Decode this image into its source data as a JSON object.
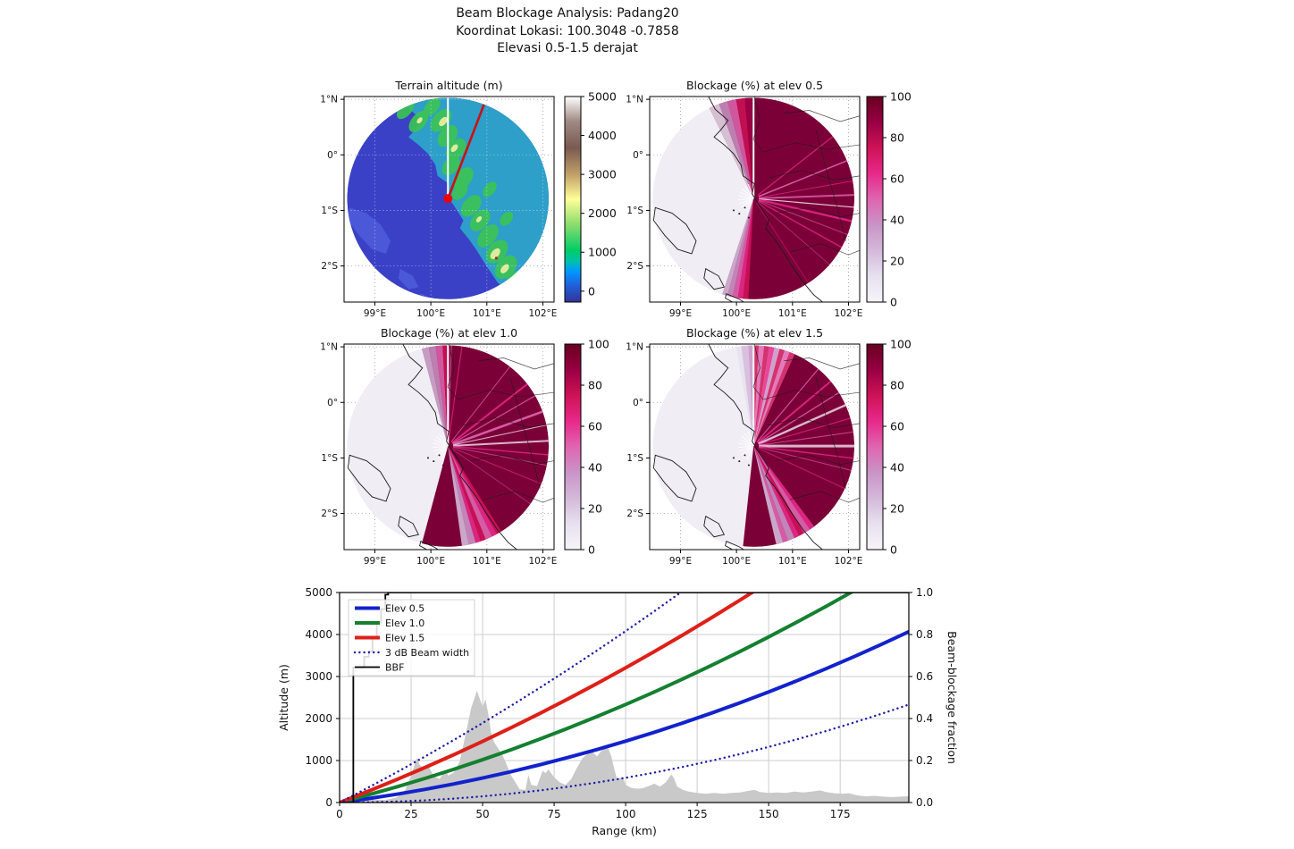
{
  "title": {
    "line1": "Beam Blockage Analysis: Padang20",
    "line2": "Koordinat Lokasi: 100.3048 -0.7858",
    "line3": "Elevasi 0.5-1.5 derajat"
  },
  "maps": {
    "x_tick_labels": [
      "99°E",
      "100°E",
      "101°E",
      "102°E"
    ],
    "y_tick_labels": [
      "1°N",
      "0°",
      "1°S",
      "2°S"
    ],
    "radar": {
      "lon": 100.3048,
      "lat": -0.7858
    },
    "panels": [
      {
        "id": "terrain",
        "title": "Terrain altitude (m)",
        "colorbar_ticks": [
          "0",
          "1000",
          "2000",
          "3000",
          "4000",
          "5000"
        ],
        "colormap": "terrain"
      },
      {
        "id": "blk05",
        "title": "Blockage (%) at elev 0.5",
        "colorbar_ticks": [
          "0",
          "20",
          "40",
          "60",
          "80",
          "100"
        ],
        "colormap": "PuRd"
      },
      {
        "id": "blk10",
        "title": "Blockage (%) at elev 1.0",
        "colorbar_ticks": [
          "0",
          "20",
          "40",
          "60",
          "80",
          "100"
        ],
        "colormap": "PuRd"
      },
      {
        "id": "blk15",
        "title": "Blockage (%) at elev 1.5",
        "colorbar_ticks": [
          "0",
          "20",
          "40",
          "60",
          "80",
          "100"
        ],
        "colormap": "PuRd"
      }
    ]
  },
  "colors": {
    "elev05": "#1222cc",
    "elev10": "#148030",
    "elev15": "#dd2018",
    "beamwidth_dotted": "#1d1da8",
    "bbf": "#000000",
    "terrain_profile_fill": "#c9c9c9",
    "blockage_high": "#67001f",
    "blockage_low": "#f7f4f9",
    "ocean": "#3a41c6",
    "land_low": "#2d9fc9",
    "ridge_green": "#3cc255",
    "radar_marker": "#ee0000"
  },
  "chart_data": [
    {
      "type": "heatmap",
      "title": "Terrain altitude (m)",
      "x_ticks": [
        "99°E",
        "100°E",
        "101°E",
        "102°E"
      ],
      "y_ticks": [
        "1°N",
        "0°",
        "1°S",
        "2°S"
      ],
      "colorbar": {
        "ticks": [
          0,
          1000,
          2000,
          3000,
          4000,
          5000
        ],
        "max": 5000
      },
      "colormap": "terrain",
      "radar": {
        "lon": 100.3048,
        "lat": -0.7858
      },
      "range_ring_deg": 1.8,
      "annotations": [
        "white north azimuth line",
        "red cross-section azimuth line",
        "red radar dot"
      ]
    },
    {
      "type": "heatmap",
      "title": "Blockage (%) at elev 0.5",
      "elevation_deg": 0.5,
      "x_ticks": [
        "99°E",
        "100°E",
        "101°E",
        "102°E"
      ],
      "y_ticks": [
        "1°N",
        "0°",
        "1°S",
        "2°S"
      ],
      "colorbar": {
        "ticks": [
          0,
          20,
          40,
          60,
          80,
          100
        ],
        "max": 100
      },
      "colormap": "PuRd",
      "summary": "near-100% blockage over land sector east of radar (azimuth ~-26° to ~198°), ~0% over sea to the west"
    },
    {
      "type": "heatmap",
      "title": "Blockage (%) at elev 1.0",
      "elevation_deg": 1.0,
      "x_ticks": [
        "99°E",
        "100°E",
        "101°E",
        "102°E"
      ],
      "y_ticks": [
        "1°N",
        "0°",
        "1°S",
        "2°S"
      ],
      "colorbar": {
        "ticks": [
          0,
          20,
          40,
          60,
          80,
          100
        ],
        "max": 100
      },
      "colormap": "PuRd",
      "summary": "high blockage east of radar with more unblocked radial streaks than elev 0.5"
    },
    {
      "type": "heatmap",
      "title": "Blockage (%) at elev 1.5",
      "elevation_deg": 1.5,
      "x_ticks": [
        "99°E",
        "100°E",
        "101°E",
        "102°E"
      ],
      "y_ticks": [
        "1°N",
        "0°",
        "1°S",
        "2°S"
      ],
      "colorbar": {
        "ticks": [
          0,
          20,
          40,
          60,
          80,
          100
        ],
        "max": 100
      },
      "colormap": "PuRd",
      "summary": "blocked sector shrinks; NNE sector partially unblocked with striped partial blockage"
    },
    {
      "type": "line",
      "xlabel": "Range (km)",
      "ylabel_left": "Altitude (m)",
      "ylabel_right": "Beam-blockage fraction",
      "xlim": [
        0,
        199
      ],
      "ylim_left": [
        0,
        5000
      ],
      "ylim_right": [
        0,
        1.0
      ],
      "x_ticks": [
        0,
        25,
        50,
        75,
        100,
        125,
        150,
        175
      ],
      "y_ticks_left": [
        0,
        1000,
        2000,
        3000,
        4000,
        5000
      ],
      "y_ticks_right": [
        "0.0",
        "0.2",
        "0.4",
        "0.6",
        "0.8",
        "1.0"
      ],
      "legend": {
        "position": "upper left",
        "entries": [
          "Elev 0.5",
          "Elev 1.0",
          "Elev 1.5",
          "3 dB Beam width",
          "BBF"
        ]
      },
      "series": [
        {
          "name": "Elev 0.5",
          "axis": "left",
          "style": "solid",
          "color": "#1222cc",
          "width": 4,
          "x": [
            0,
            10,
            20,
            30,
            40,
            50,
            60,
            70,
            80,
            90,
            100,
            110,
            120,
            130,
            140,
            150,
            160,
            170,
            180,
            190,
            199
          ],
          "y": [
            0,
            93,
            198,
            315,
            443,
            584,
            736,
            899,
            1075,
            1262,
            1461,
            1672,
            1895,
            2129,
            2376,
            2633,
            2903,
            3185,
            3478,
            3783,
            4068
          ]
        },
        {
          "name": "Elev 1.0",
          "axis": "left",
          "style": "solid",
          "color": "#148030",
          "width": 4,
          "x": [
            0,
            10,
            20,
            30,
            40,
            50,
            60,
            70,
            80,
            90,
            100,
            110,
            120,
            130,
            140,
            150,
            160,
            170,
            180,
            190,
            199
          ],
          "y": [
            0,
            181,
            373,
            577,
            792,
            1020,
            1259,
            1510,
            1773,
            2048,
            2334,
            2632,
            2942,
            3264,
            3597,
            3943,
            4300,
            4668,
            5049,
            5441,
            5804
          ]
        },
        {
          "name": "Elev 1.5",
          "axis": "left",
          "style": "solid",
          "color": "#dd2018",
          "width": 4,
          "x": [
            0,
            10,
            20,
            30,
            40,
            50,
            60,
            70,
            80,
            90,
            100,
            110,
            120,
            130,
            140,
            150,
            160,
            170,
            180,
            190,
            199
          ],
          "y": [
            0,
            268,
            548,
            838,
            1141,
            1456,
            1783,
            2121,
            2472,
            2834,
            3207,
            3592,
            3990,
            4399,
            4820,
            5252,
            5696,
            6152,
            6621,
            7100,
            7542
          ]
        },
        {
          "name": "3 dB Beam width (upper)",
          "legend_label": "3 dB Beam width",
          "axis": "left",
          "style": "dotted",
          "color": "#1d1da8",
          "width": 2.4,
          "x": [
            0,
            10,
            20,
            30,
            40,
            50,
            60,
            70,
            80,
            90,
            100,
            110,
            120,
            130,
            140,
            150,
            160,
            170,
            180,
            190,
            199
          ],
          "y": [
            0,
            355,
            722,
            1101,
            1491,
            1893,
            2307,
            2732,
            3171,
            3620,
            4081,
            4553,
            5038,
            5535,
            6043,
            6562,
            7094,
            7638,
            8194,
            8760,
            9280
          ]
        },
        {
          "name": "3 dB Beam width (lower)",
          "legend_label": "3 dB Beam width",
          "axis": "left",
          "style": "dotted",
          "color": "#1d1da8",
          "width": 2.4,
          "x": [
            0,
            10,
            20,
            30,
            40,
            50,
            60,
            70,
            80,
            90,
            100,
            110,
            120,
            130,
            140,
            150,
            160,
            170,
            180,
            190,
            199
          ],
          "y": [
            0,
            6,
            24,
            53,
            94,
            147,
            212,
            288,
            377,
            477,
            589,
            712,
            848,
            995,
            1154,
            1324,
            1507,
            1701,
            1908,
            2125,
            2331
          ]
        },
        {
          "name": "BBF",
          "axis": "right",
          "style": "step",
          "color": "#000000",
          "width": 1.8,
          "x": [
            0,
            4.8,
            4.8,
            8.6,
            8.6,
            10.2,
            10.2,
            11.5,
            11.5,
            13,
            13,
            14.5,
            14.5,
            16,
            16,
            17,
            17,
            199
          ],
          "y": [
            0,
            0,
            0.643,
            0.643,
            0.694,
            0.694,
            0.72,
            0.72,
            0.78,
            0.78,
            0.857,
            0.857,
            0.92,
            0.92,
            0.99,
            0.99,
            1.0,
            1.0
          ]
        },
        {
          "name": "Terrain profile",
          "axis": "left",
          "style": "area",
          "color": "#c9c9c9",
          "x": [
            0,
            4,
            8,
            12,
            16,
            20,
            23,
            25,
            27,
            28,
            30,
            31,
            33,
            35,
            37,
            38,
            40,
            42,
            44,
            46,
            48,
            49,
            50,
            51,
            52,
            53,
            54,
            56,
            57,
            58,
            60,
            62,
            63,
            65,
            66,
            67,
            69,
            71,
            72,
            73,
            75,
            77,
            79,
            81,
            83,
            85,
            87,
            88,
            90,
            92,
            93,
            94,
            95,
            96,
            97,
            99,
            100,
            102,
            104,
            106,
            108,
            110,
            112,
            114,
            116,
            117,
            118,
            120,
            122,
            125,
            128,
            131,
            134,
            137,
            140,
            143,
            145,
            147,
            150,
            153,
            156,
            159,
            162,
            165,
            168,
            170,
            173,
            176,
            178,
            181,
            184,
            187,
            190,
            193,
            196,
            199
          ],
          "y": [
            8,
            15,
            45,
            70,
            60,
            120,
            300,
            640,
            1060,
            900,
            780,
            880,
            620,
            560,
            780,
            640,
            720,
            980,
            1600,
            2250,
            2660,
            2470,
            2280,
            2460,
            2100,
            1650,
            1440,
            1230,
            1120,
            970,
            640,
            420,
            310,
            300,
            660,
            420,
            390,
            760,
            700,
            790,
            600,
            480,
            420,
            560,
            830,
            1060,
            1180,
            1230,
            1100,
            1270,
            1320,
            1280,
            1100,
            800,
            560,
            600,
            420,
            350,
            330,
            340,
            390,
            450,
            380,
            480,
            670,
            560,
            380,
            300,
            260,
            230,
            210,
            230,
            210,
            230,
            240,
            280,
            300,
            250,
            230,
            240,
            230,
            260,
            240,
            260,
            290,
            250,
            220,
            210,
            220,
            170,
            150,
            160,
            140,
            130,
            140,
            150
          ]
        }
      ]
    }
  ]
}
